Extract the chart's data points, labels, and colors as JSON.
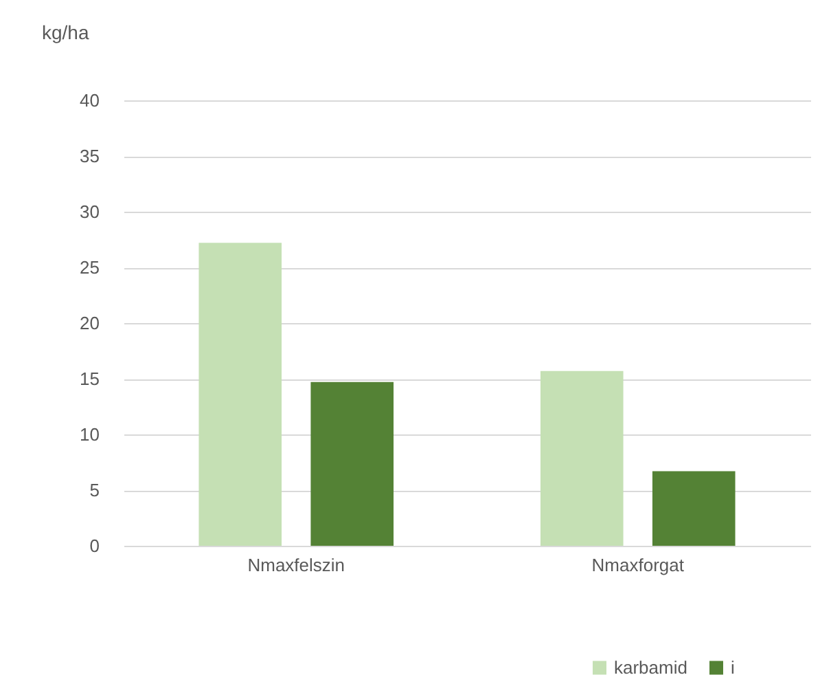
{
  "chart_data": {
    "type": "bar",
    "ylabel": "kg/ha",
    "categories": [
      "Nmaxfelszin",
      "Nmaxforgat"
    ],
    "series": [
      {
        "name": "karbamid",
        "color": "#c5e0b4",
        "values": [
          27.2,
          15.7
        ]
      },
      {
        "name": "i",
        "color": "#548235",
        "values": [
          14.7,
          6.7
        ]
      }
    ],
    "ylim": [
      0,
      40
    ],
    "yticks": [
      0,
      5,
      10,
      15,
      20,
      25,
      30,
      35,
      40
    ],
    "grid": "y",
    "legend": "bottom right"
  }
}
